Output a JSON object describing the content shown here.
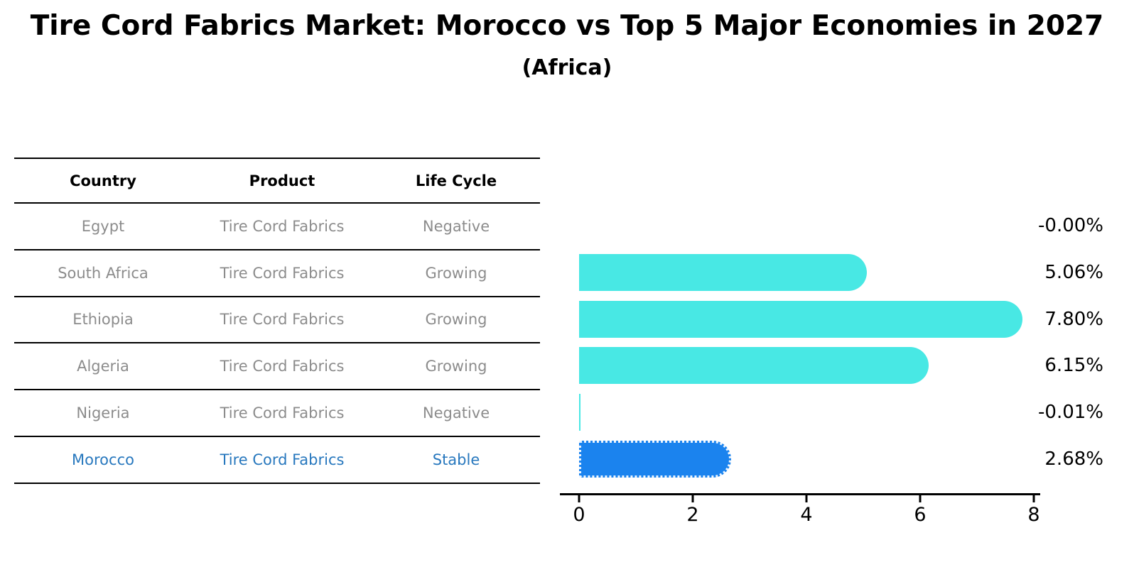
{
  "title": "Tire Cord Fabrics Market: Morocco vs Top 5 Major Economies in 2027",
  "subtitle": "(Africa)",
  "table": {
    "headers": [
      "Country",
      "Product",
      "Life Cycle"
    ],
    "rows": [
      {
        "country": "Egypt",
        "product": "Tire Cord Fabrics",
        "life_cycle": "Negative",
        "highlight": false
      },
      {
        "country": "South Africa",
        "product": "Tire Cord Fabrics",
        "life_cycle": "Growing",
        "highlight": false
      },
      {
        "country": "Ethiopia",
        "product": "Tire Cord Fabrics",
        "life_cycle": "Growing",
        "highlight": false
      },
      {
        "country": "Algeria",
        "product": "Tire Cord Fabrics",
        "life_cycle": "Growing",
        "highlight": false
      },
      {
        "country": "Nigeria",
        "product": "Tire Cord Fabrics",
        "life_cycle": "Negative",
        "highlight": false
      },
      {
        "country": "Morocco",
        "product": "Tire Cord Fabrics",
        "life_cycle": "Stable",
        "highlight": true
      }
    ]
  },
  "chart_data": {
    "type": "bar",
    "orientation": "horizontal",
    "title": "Tire Cord Fabrics Market: Morocco vs Top 5 Major Economies in 2027",
    "subtitle": "(Africa)",
    "categories": [
      "Egypt",
      "South Africa",
      "Ethiopia",
      "Algeria",
      "Nigeria",
      "Morocco"
    ],
    "values": [
      -0.0,
      5.06,
      7.8,
      6.15,
      -0.01,
      2.68
    ],
    "labels": [
      "-0.00%",
      "5.06%",
      "7.80%",
      "6.15%",
      "-0.01%",
      "2.68%"
    ],
    "xticks": [
      0,
      2,
      4,
      6,
      8
    ],
    "xlim": [
      0,
      8.5
    ],
    "xlabel": "",
    "ylabel": "",
    "grid": false,
    "legend": false,
    "highlight_index": 5
  },
  "colors": {
    "bar_color": "#48e8e4",
    "highlight_bar": "#1b83ee",
    "highlight_text": "#2878be",
    "row_text": "#8c8c8c",
    "axis": "#000000"
  }
}
